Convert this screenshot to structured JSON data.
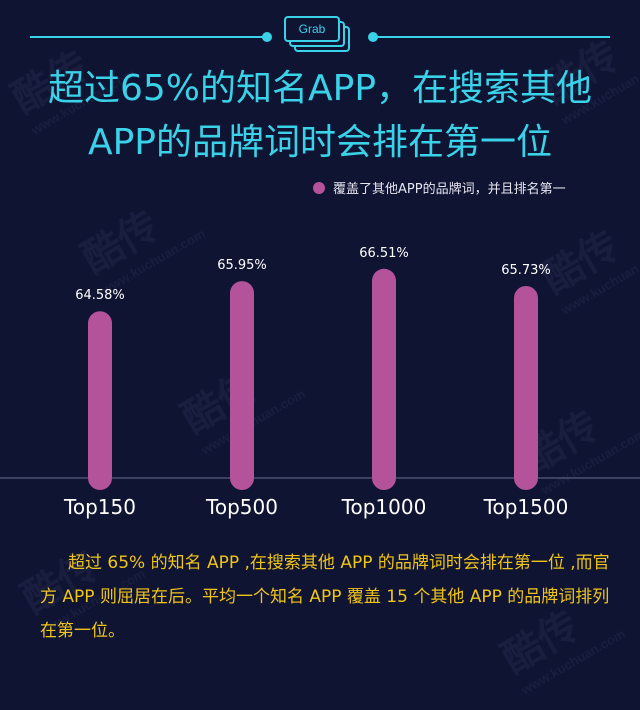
{
  "header": {
    "logo_text": "Grab",
    "title_line1": "超过65%的知名APP，在搜索其他",
    "title_line2": "APP的品牌词时会排在第一位"
  },
  "colors": {
    "background": "#0f1433",
    "accent": "#3ad2e8",
    "bar": "#b4529a",
    "description": "#f0c419"
  },
  "chart_data": {
    "type": "bar",
    "categories": [
      "Top150",
      "Top500",
      "Top1000",
      "Top1500"
    ],
    "values": [
      64.58,
      65.95,
      66.51,
      65.73
    ],
    "value_labels": [
      "64.58%",
      "65.95%",
      "66.51%",
      "65.73%"
    ],
    "series": [
      {
        "name": "覆盖了其他APP的品牌词，并且排名第一",
        "values": [
          64.58,
          65.95,
          66.51,
          65.73
        ]
      }
    ],
    "title": "超过65%的知名APP，在搜索其他APP的品牌词时会排在第一位",
    "xlabel": "",
    "ylabel": "",
    "ylim": [
      57,
      67
    ],
    "grid": false,
    "legend_position": "top-right"
  },
  "legend": {
    "label": "覆盖了其他APP的品牌词，并且排名第一"
  },
  "description": "超过 65% 的知名 APP ,在搜索其他 APP 的品牌词时会排在第一位 ,而官方 APP 则屈居在后。平均一个知名 APP 覆盖 15 个其他 APP 的品牌词排列在第一位。",
  "watermark": {
    "brand": "酷传",
    "site": "www.kuchuan.com"
  }
}
